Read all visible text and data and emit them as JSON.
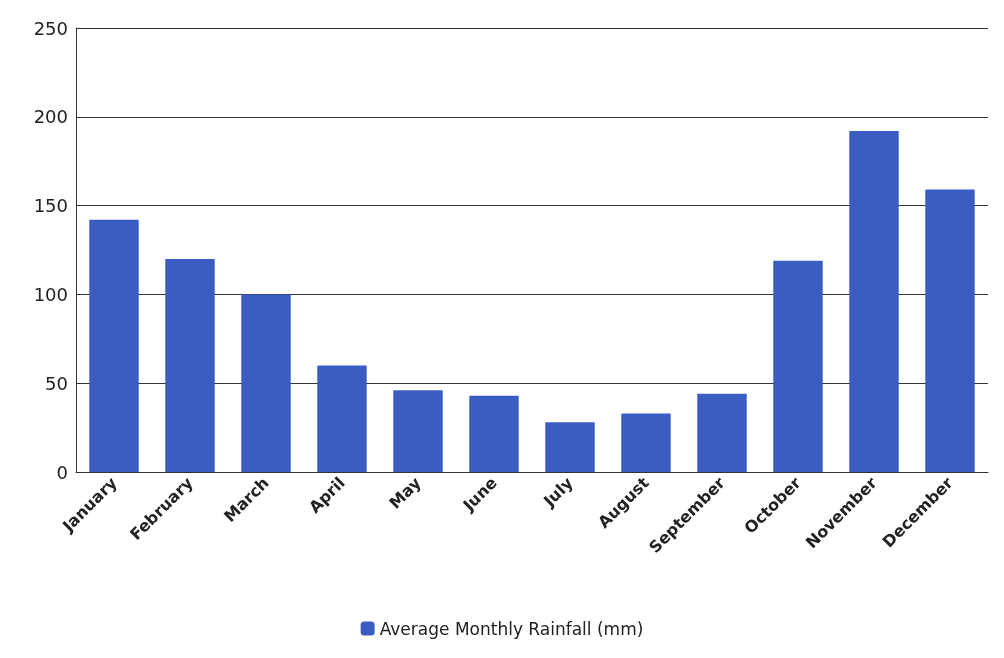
{
  "chart_data": {
    "type": "bar",
    "categories": [
      "January",
      "February",
      "March",
      "April",
      "May",
      "June",
      "July",
      "August",
      "September",
      "October",
      "November",
      "December"
    ],
    "series": [
      {
        "name": "Average Monthly Rainfall (mm)",
        "color": "#3b5cc0",
        "values": [
          142,
          120,
          100,
          60,
          46,
          43,
          28,
          33,
          44,
          119,
          192,
          159
        ]
      }
    ],
    "ylim": [
      0,
      250
    ],
    "yticks": [
      0,
      50,
      100,
      150,
      200,
      250
    ],
    "grid": "y",
    "legend": "bottom"
  }
}
